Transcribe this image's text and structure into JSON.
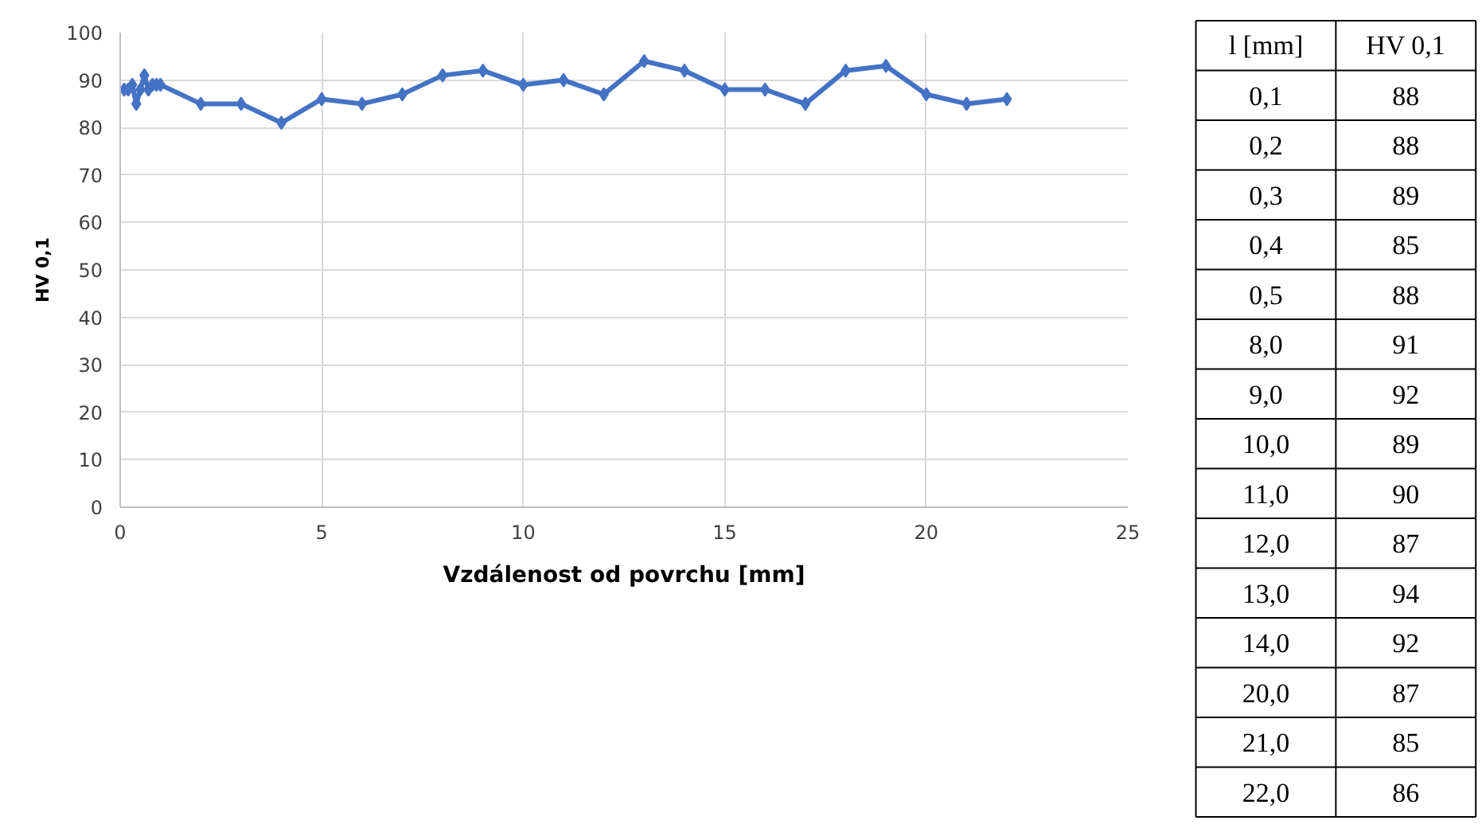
{
  "chart_data": {
    "type": "line",
    "xlabel": "Vzdálenost od povrchu [mm]",
    "ylabel": "HV 0,1",
    "x": [
      0.1,
      0.2,
      0.3,
      0.4,
      0.5,
      0.6,
      0.7,
      0.8,
      0.9,
      1.0,
      2,
      3,
      4,
      5,
      6,
      7,
      8,
      9,
      10,
      11,
      12,
      13,
      14,
      15,
      16,
      17,
      18,
      19,
      20,
      21,
      22
    ],
    "series": [
      {
        "color": "#4472c4",
        "values": [
          88,
          88,
          89,
          85,
          88,
          91,
          88,
          89,
          89,
          89,
          85,
          85,
          81,
          86,
          85,
          87,
          91,
          92,
          89,
          90,
          87,
          94,
          92,
          88,
          88,
          85,
          92,
          93,
          87,
          85,
          86
        ]
      }
    ],
    "xlim": [
      0,
      25
    ],
    "xticks": [
      0,
      5,
      10,
      15,
      20,
      25
    ],
    "ylim": [
      0,
      100
    ],
    "yticks": [
      0,
      10,
      20,
      30,
      40,
      50,
      60,
      70,
      80,
      90,
      100
    ],
    "grid": true,
    "marker": "diamond",
    "line_style": "solid",
    "annotations": [
      "l [mm]",
      "HV 0,1",
      "0,1",
      "88",
      "0,2",
      "88",
      "0,3",
      "89",
      "0,4",
      "85",
      "0,5",
      "88",
      "8,0",
      "91",
      "9,0",
      "92",
      "10,0",
      "89",
      "11,0",
      "90",
      "12,0",
      "87",
      "13,0",
      "94",
      "14,0",
      "92",
      "20,0",
      "87",
      "21,0",
      "85",
      "22,0",
      "86"
    ]
  }
}
